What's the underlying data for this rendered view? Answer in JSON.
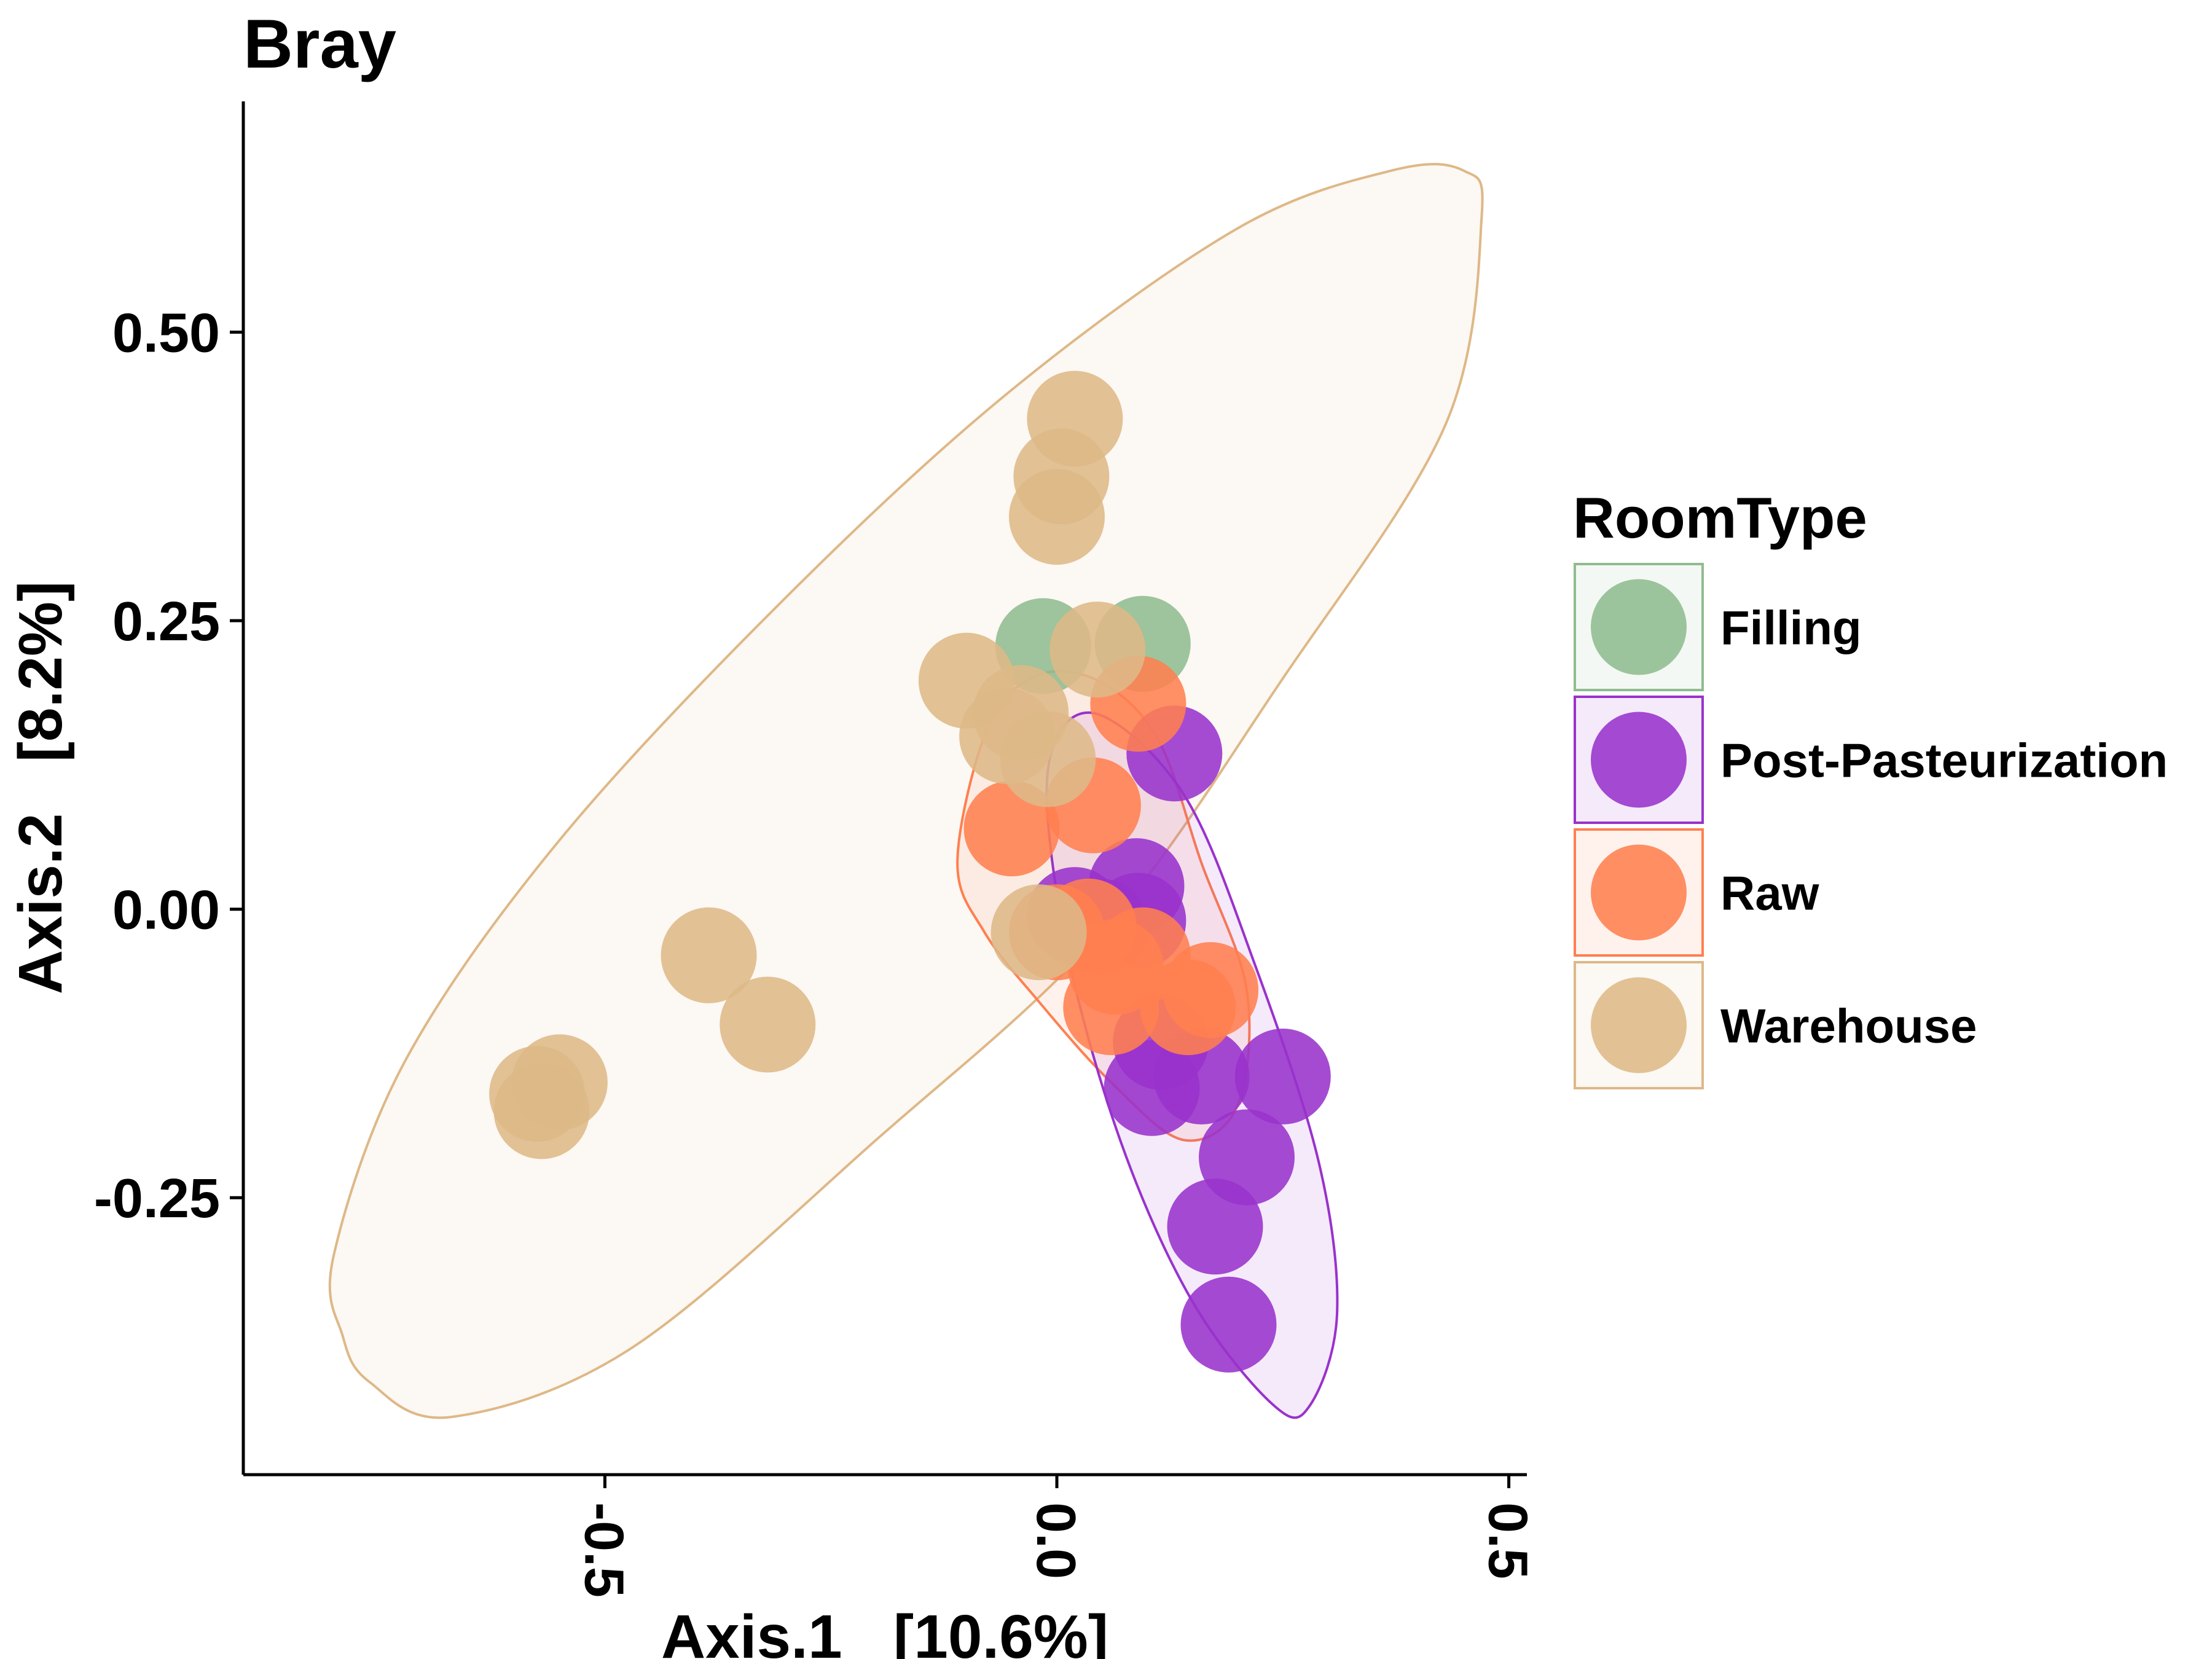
{
  "chart_data": {
    "type": "scatter",
    "title": "Bray",
    "xlabel": "Axis.1   [10.6%]",
    "ylabel": "Axis.2   [8.2%]",
    "xlim": [
      -0.9,
      0.52
    ],
    "ylim": [
      -0.49,
      0.7
    ],
    "x_ticks": [
      {
        "value": -0.5,
        "label": "-0.5"
      },
      {
        "value": 0.0,
        "label": "0.0"
      },
      {
        "value": 0.5,
        "label": "0.5"
      }
    ],
    "y_ticks": [
      {
        "value": 0.5,
        "label": "0.50"
      },
      {
        "value": 0.25,
        "label": "0.25"
      },
      {
        "value": 0.0,
        "label": "0.00"
      },
      {
        "value": -0.25,
        "label": "-0.25"
      }
    ],
    "grid": false,
    "legend": {
      "title": "RoomType",
      "position": "right"
    },
    "series": [
      {
        "name": "Filling",
        "color": "#8FBC8F",
        "points": [
          {
            "x": 0.095,
            "y": 0.23
          },
          {
            "x": -0.015,
            "y": 0.228
          }
        ]
      },
      {
        "name": "Post-Pasteurization",
        "color": "#9932CC",
        "points": [
          {
            "x": 0.13,
            "y": 0.135
          },
          {
            "x": 0.088,
            "y": 0.02
          },
          {
            "x": 0.09,
            "y": -0.01
          },
          {
            "x": 0.048,
            "y": -0.015
          },
          {
            "x": 0.02,
            "y": -0.005
          },
          {
            "x": 0.115,
            "y": -0.115
          },
          {
            "x": 0.25,
            "y": -0.145
          },
          {
            "x": 0.16,
            "y": -0.145
          },
          {
            "x": 0.105,
            "y": -0.155
          },
          {
            "x": 0.21,
            "y": -0.215
          },
          {
            "x": 0.175,
            "y": -0.275
          },
          {
            "x": 0.19,
            "y": -0.36
          }
        ]
      },
      {
        "name": "Raw",
        "color": "#FF7F50",
        "points": [
          {
            "x": 0.09,
            "y": 0.178
          },
          {
            "x": 0.04,
            "y": 0.09
          },
          {
            "x": -0.05,
            "y": 0.07
          },
          {
            "x": 0.035,
            "y": -0.015
          },
          {
            "x": 0.0,
            "y": -0.02
          },
          {
            "x": 0.065,
            "y": -0.05
          },
          {
            "x": 0.095,
            "y": -0.04
          },
          {
            "x": 0.17,
            "y": -0.07
          },
          {
            "x": 0.06,
            "y": -0.085
          },
          {
            "x": 0.145,
            "y": -0.085
          }
        ]
      },
      {
        "name": "Warehouse",
        "color": "#DEB887",
        "points": [
          {
            "x": 0.02,
            "y": 0.425
          },
          {
            "x": 0.005,
            "y": 0.375
          },
          {
            "x": 0.0,
            "y": 0.34
          },
          {
            "x": 0.045,
            "y": 0.225
          },
          {
            "x": -0.1,
            "y": 0.198
          },
          {
            "x": -0.04,
            "y": 0.17
          },
          {
            "x": -0.055,
            "y": 0.15
          },
          {
            "x": -0.01,
            "y": 0.13
          },
          {
            "x": -0.02,
            "y": -0.02
          },
          {
            "x": -0.385,
            "y": -0.04
          },
          {
            "x": -0.32,
            "y": -0.1
          },
          {
            "x": -0.55,
            "y": -0.15
          },
          {
            "x": -0.575,
            "y": -0.16
          },
          {
            "x": -0.57,
            "y": -0.175
          }
        ]
      }
    ],
    "ellipses": [
      {
        "series": "Warehouse",
        "color": "#DEB887",
        "points": [
          [
            -0.79,
            -0.37
          ],
          [
            -0.76,
            -0.41
          ],
          [
            -0.67,
            -0.44
          ],
          [
            -0.47,
            -0.38
          ],
          [
            -0.2,
            -0.2
          ],
          [
            0.05,
            -0.02
          ],
          [
            0.25,
            0.2
          ],
          [
            0.43,
            0.42
          ],
          [
            0.47,
            0.6
          ],
          [
            0.45,
            0.64
          ],
          [
            0.37,
            0.64
          ],
          [
            0.2,
            0.59
          ],
          [
            -0.05,
            0.45
          ],
          [
            -0.3,
            0.27
          ],
          [
            -0.55,
            0.06
          ],
          [
            -0.72,
            -0.13
          ],
          [
            -0.8,
            -0.3
          ]
        ]
      },
      {
        "series": "Raw",
        "color": "#FF7F50",
        "points": [
          [
            -0.11,
            0.04
          ],
          [
            -0.08,
            0.15
          ],
          [
            -0.03,
            0.2
          ],
          [
            0.04,
            0.2
          ],
          [
            0.11,
            0.15
          ],
          [
            0.16,
            0.04
          ],
          [
            0.21,
            -0.07
          ],
          [
            0.2,
            -0.17
          ],
          [
            0.14,
            -0.2
          ],
          [
            0.06,
            -0.15
          ],
          [
            -0.02,
            -0.08
          ],
          [
            -0.08,
            -0.02
          ]
        ]
      },
      {
        "series": "Post-Pasteurization",
        "color": "#9932CC",
        "points": [
          [
            0.04,
            0.17
          ],
          [
            0.14,
            0.1
          ],
          [
            0.22,
            -0.05
          ],
          [
            0.29,
            -0.22
          ],
          [
            0.31,
            -0.35
          ],
          [
            0.28,
            -0.43
          ],
          [
            0.24,
            -0.43
          ],
          [
            0.15,
            -0.34
          ],
          [
            0.07,
            -0.2
          ],
          [
            0.01,
            -0.03
          ],
          [
            -0.01,
            0.12
          ]
        ]
      }
    ]
  }
}
